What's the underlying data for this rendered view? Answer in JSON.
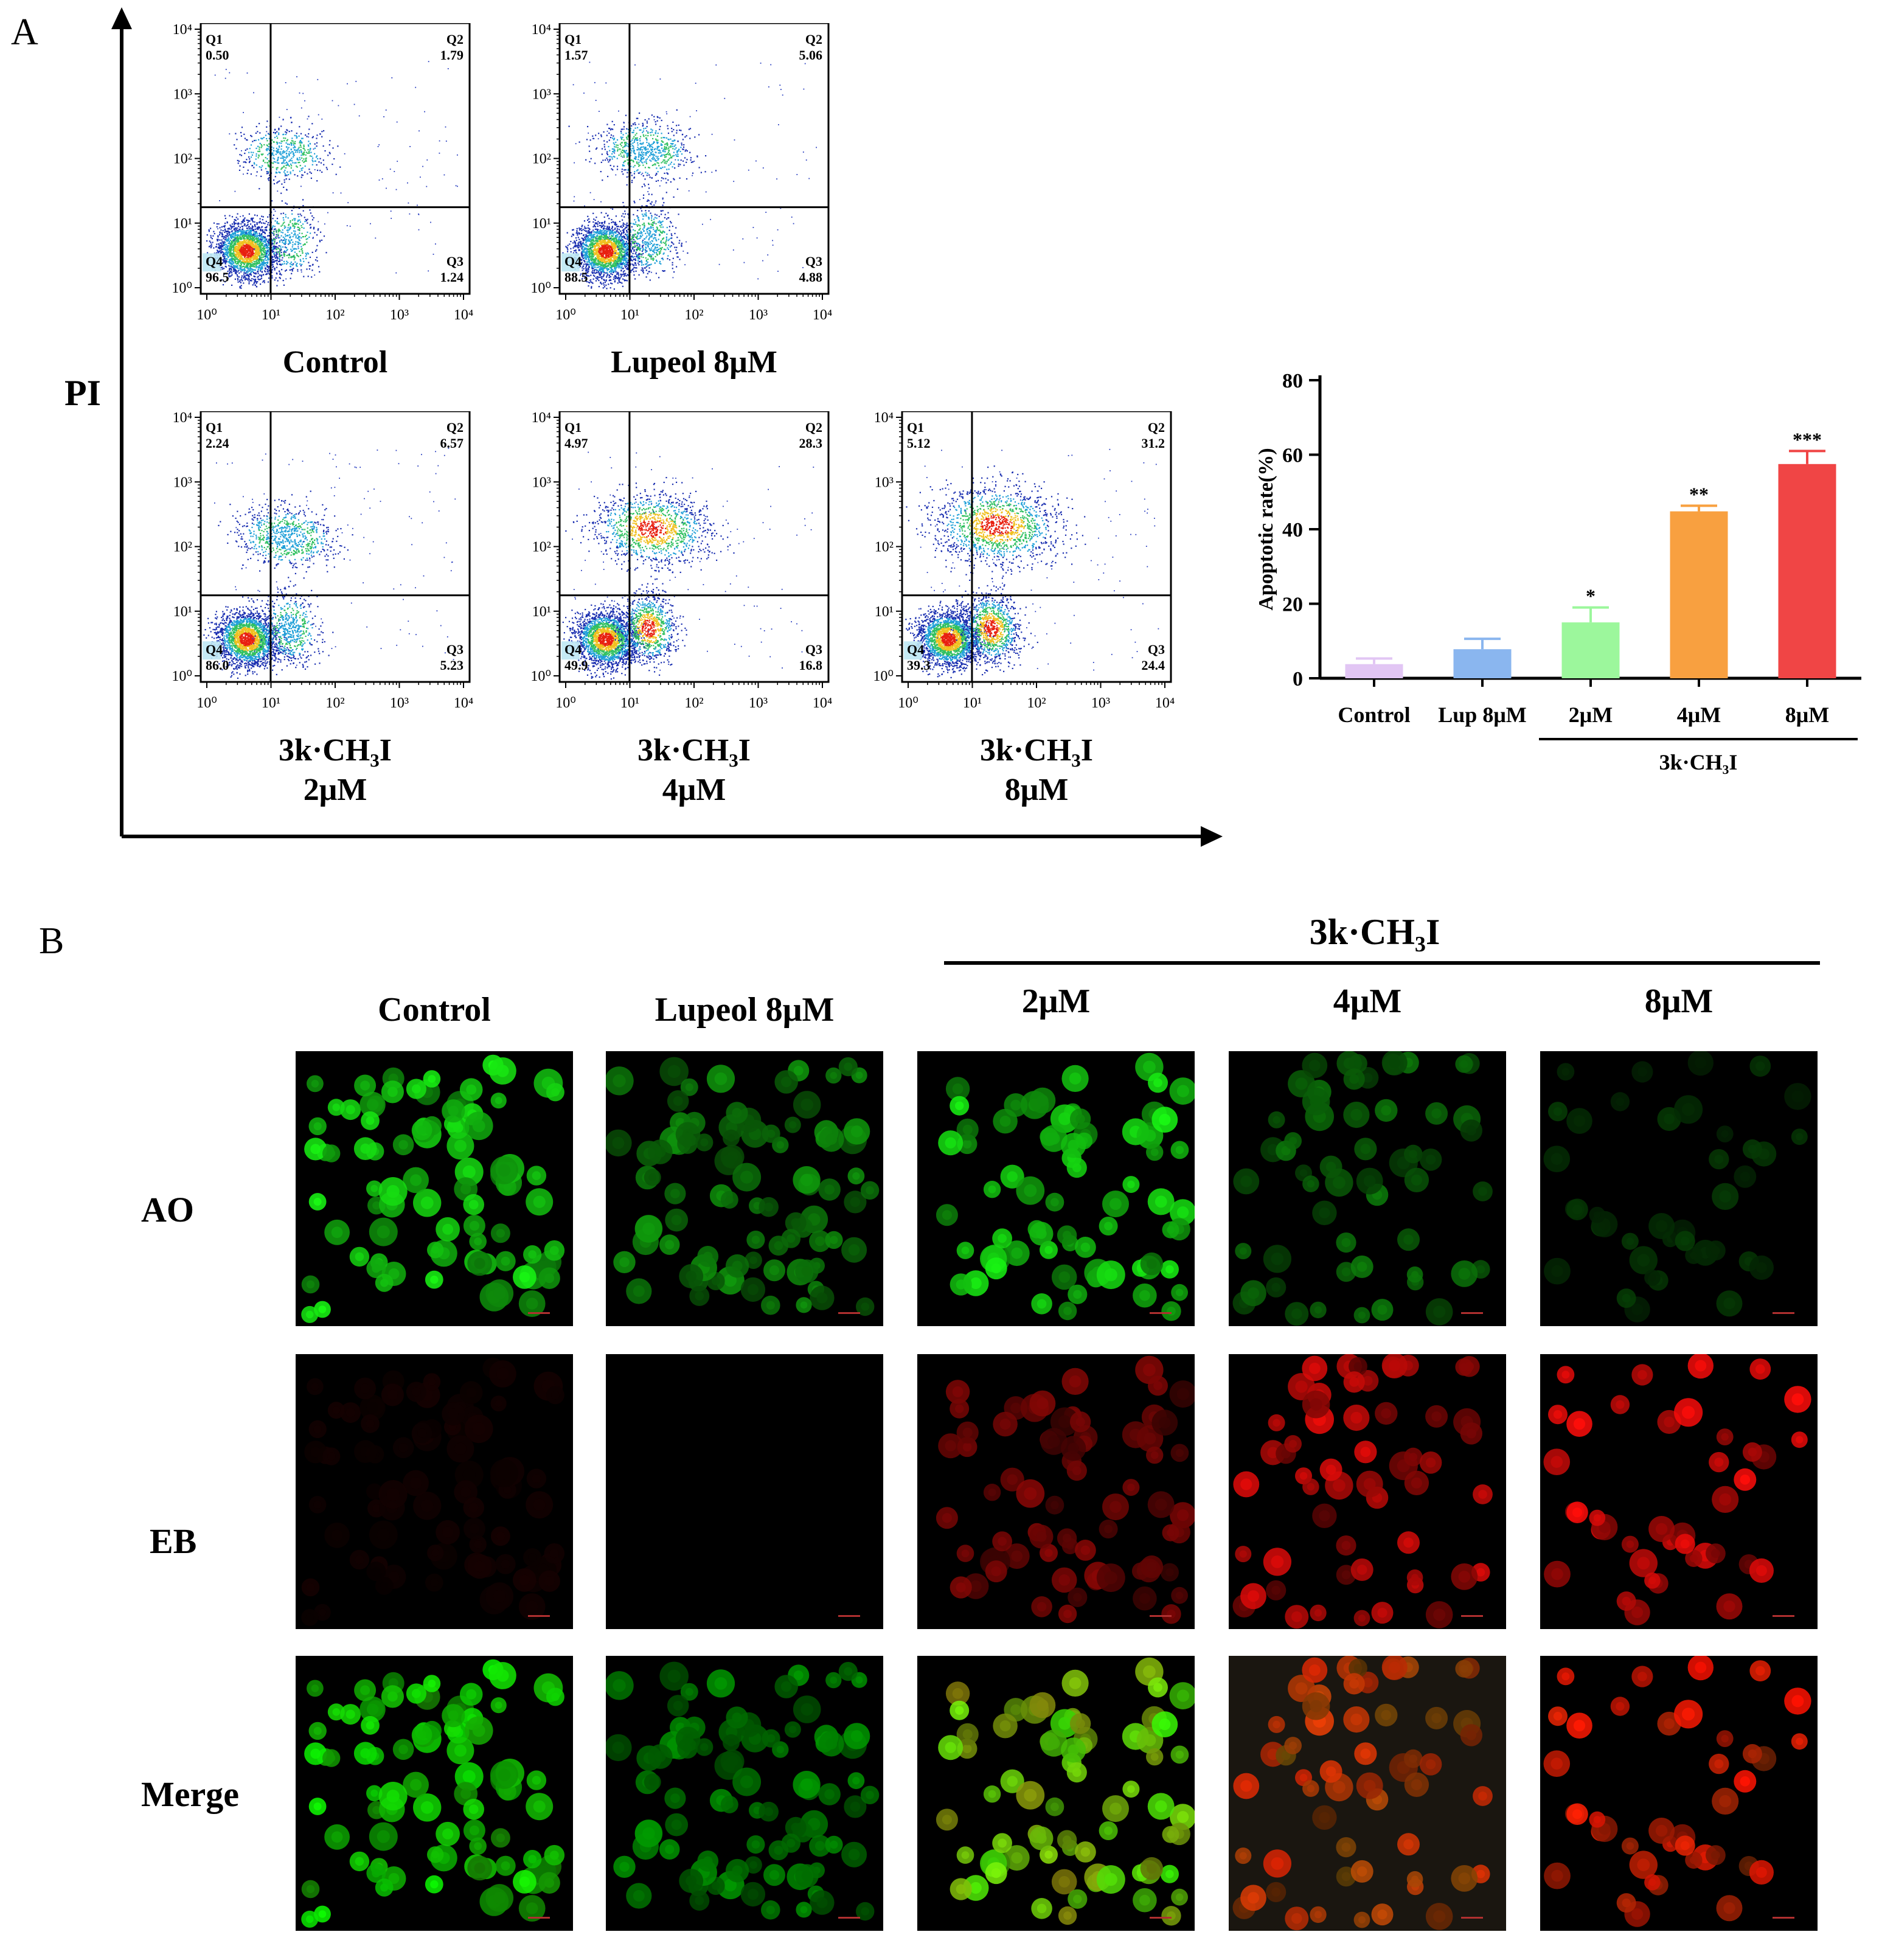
{
  "panel_a": {
    "letter": "A",
    "y_axis_label": "PI",
    "flow_plots": [
      {
        "id": "control",
        "label_lines": [
          "Control"
        ],
        "q1": "0.50",
        "q2": "1.79",
        "q3": "1.24",
        "q4": "96.5",
        "density": 0.22
      },
      {
        "id": "lupeol",
        "label_lines": [
          "Lupeol 8μM"
        ],
        "q1": "1.57",
        "q2": "5.06",
        "q3": "4.88",
        "q4": "88.5",
        "density": 0.35
      },
      {
        "id": "c2",
        "label_lines": [
          "3k·CH₃I",
          "2μM"
        ],
        "q1": "2.24",
        "q2": "6.57",
        "q3": "5.23",
        "q4": "86.0",
        "density": 0.4
      },
      {
        "id": "c4",
        "label_lines": [
          "3k·CH₃I",
          "4μM"
        ],
        "q1": "4.97",
        "q2": "28.3",
        "q3": "16.8",
        "q4": "49.9",
        "density": 0.75
      },
      {
        "id": "c8",
        "label_lines": [
          "3k·CH₃I",
          "8μM"
        ],
        "q1": "5.12",
        "q2": "31.2",
        "q3": "24.4",
        "q4": "39.3",
        "density": 0.9
      }
    ],
    "quadrant_names": [
      "Q1",
      "Q2",
      "Q3",
      "Q4"
    ],
    "axis_ticks": [
      "10⁰",
      "10¹",
      "10²",
      "10³",
      "10⁴"
    ]
  },
  "chart_data": {
    "type": "bar",
    "categories": [
      "Control",
      "Lup 8μM",
      "2μM",
      "4μM",
      "8μM"
    ],
    "values": [
      3.8,
      7.8,
      15.0,
      44.8,
      57.5
    ],
    "errors": [
      1.5,
      2.8,
      4.0,
      1.5,
      3.5
    ],
    "significance": [
      "",
      "",
      "*",
      "**",
      "***"
    ],
    "colors": [
      "#e2c6f4",
      "#8ab6ef",
      "#9cf79c",
      "#f8a040",
      "#f04545"
    ],
    "ylabel": "Apoptotic rate(%)",
    "ylim": [
      0,
      80
    ],
    "yticks": [
      0,
      20,
      40,
      60,
      80
    ],
    "group_label": "3k·CH₃I"
  },
  "panel_b": {
    "letter": "B",
    "group_label": "3k·CH₃I",
    "columns": [
      "Control",
      "Lupeol 8μM",
      "2μM",
      "4μM",
      "8μM"
    ],
    "rows": [
      "AO",
      "EB",
      "Merge"
    ]
  }
}
